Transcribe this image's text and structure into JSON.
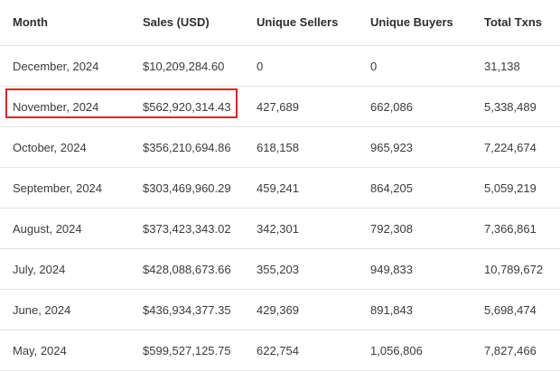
{
  "colors": {
    "highlight": "#d02a2a",
    "row_divider": "#e4e4e4",
    "text": "#3b3b3b"
  },
  "table": {
    "headers": [
      "Month",
      "Sales (USD)",
      "Unique Sellers",
      "Unique Buyers",
      "Total Txns"
    ],
    "rows": [
      [
        "December, 2024",
        "$10,209,284.60",
        "0",
        "0",
        "31,138"
      ],
      [
        "November, 2024",
        "$562,920,314.43",
        "427,689",
        "662,086",
        "5,338,489"
      ],
      [
        "October, 2024",
        "$356,210,694.86",
        "618,158",
        "965,923",
        "7,224,674"
      ],
      [
        "September, 2024",
        "$303,469,960.29",
        "459,241",
        "864,205",
        "5,059,219"
      ],
      [
        "August, 2024",
        "$373,423,343.02",
        "342,301",
        "792,308",
        "7,366,861"
      ],
      [
        "July, 2024",
        "$428,088,673.66",
        "355,203",
        "949,833",
        "10,789,672"
      ],
      [
        "June, 2024",
        "$436,934,377.35",
        "429,369",
        "891,843",
        "5,698,474"
      ],
      [
        "May, 2024",
        "$599,527,125.75",
        "622,754",
        "1,056,806",
        "7,827,466"
      ]
    ]
  }
}
